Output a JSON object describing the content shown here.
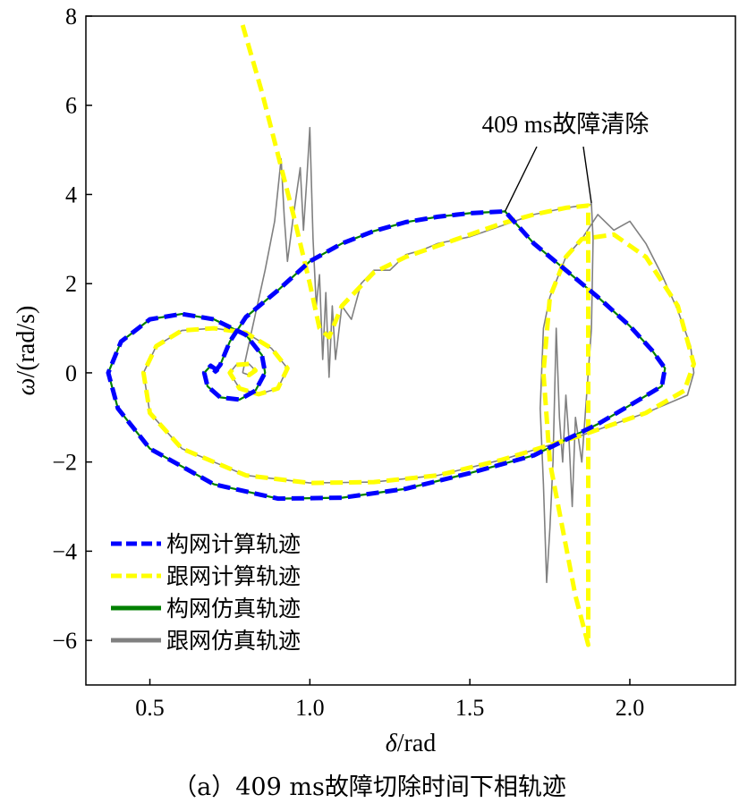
{
  "caption": "（a）409 ms故障切除时间下相轨迹",
  "chart_data": {
    "type": "line",
    "xlabel_symbol": "δ",
    "xlabel_unit": "/rad",
    "ylabel_symbol": "ω",
    "ylabel_unit": "/(rad/s)",
    "xlim": [
      0.3,
      2.33
    ],
    "ylim": [
      -7,
      8
    ],
    "xticks": [
      0.5,
      1.0,
      1.5,
      2.0
    ],
    "xtick_labels": [
      "0.5",
      "1.0",
      "1.5",
      "2.0"
    ],
    "yticks": [
      -6,
      -4,
      -2,
      0,
      2,
      4,
      6,
      8
    ],
    "ytick_labels": [
      "−6",
      "−4",
      "−2",
      "0",
      "2",
      "4",
      "6",
      "8"
    ],
    "grid": false,
    "legend_position": "bottom-left",
    "annotation": {
      "text": "409 ms故障清除",
      "points": [
        [
          1.61,
          3.62
        ],
        [
          1.88,
          3.8
        ]
      ]
    },
    "series": [
      {
        "name": "构网计算轨迹",
        "color": "#0000ff",
        "style": "dashed",
        "points": [
          [
            0.7,
            0.0
          ],
          [
            0.72,
            0.18
          ],
          [
            0.75,
            0.7
          ],
          [
            0.8,
            1.25
          ],
          [
            0.9,
            1.85
          ],
          [
            1.0,
            2.5
          ],
          [
            1.1,
            2.9
          ],
          [
            1.2,
            3.18
          ],
          [
            1.3,
            3.38
          ],
          [
            1.4,
            3.5
          ],
          [
            1.5,
            3.58
          ],
          [
            1.61,
            3.62
          ],
          [
            1.65,
            3.3
          ],
          [
            1.7,
            2.9
          ],
          [
            1.8,
            2.3
          ],
          [
            1.9,
            1.7
          ],
          [
            2.0,
            1.05
          ],
          [
            2.07,
            0.5
          ],
          [
            2.11,
            0.1
          ],
          [
            2.1,
            -0.3
          ],
          [
            2.03,
            -0.6
          ],
          [
            1.9,
            -1.15
          ],
          [
            1.7,
            -1.85
          ],
          [
            1.5,
            -2.25
          ],
          [
            1.3,
            -2.6
          ],
          [
            1.1,
            -2.8
          ],
          [
            0.9,
            -2.82
          ],
          [
            0.7,
            -2.5
          ],
          [
            0.5,
            -1.7
          ],
          [
            0.4,
            -0.8
          ],
          [
            0.37,
            0.0
          ],
          [
            0.41,
            0.7
          ],
          [
            0.5,
            1.2
          ],
          [
            0.6,
            1.32
          ],
          [
            0.7,
            1.2
          ],
          [
            0.8,
            0.85
          ],
          [
            0.85,
            0.4
          ],
          [
            0.86,
            0.0
          ],
          [
            0.83,
            -0.4
          ],
          [
            0.78,
            -0.6
          ],
          [
            0.72,
            -0.55
          ],
          [
            0.68,
            -0.3
          ],
          [
            0.67,
            0.0
          ],
          [
            0.69,
            0.16
          ],
          [
            0.71,
            0.06
          ],
          [
            0.7,
            0.0
          ]
        ]
      },
      {
        "name": "跟网计算轨迹",
        "color": "#ffff00",
        "style": "dashed",
        "points": [
          [
            0.79,
            7.8
          ],
          [
            0.85,
            6.3
          ],
          [
            0.9,
            4.9
          ],
          [
            0.95,
            3.5
          ],
          [
            1.0,
            2.0
          ],
          [
            1.03,
            1.0
          ],
          [
            1.06,
            0.8
          ],
          [
            1.1,
            1.5
          ],
          [
            1.2,
            2.25
          ],
          [
            1.3,
            2.6
          ],
          [
            1.4,
            2.85
          ],
          [
            1.5,
            3.1
          ],
          [
            1.6,
            3.35
          ],
          [
            1.7,
            3.55
          ],
          [
            1.8,
            3.7
          ],
          [
            1.87,
            3.75
          ],
          [
            1.87,
            1.5
          ],
          [
            1.87,
            -1.0
          ],
          [
            1.87,
            -3.5
          ],
          [
            1.87,
            -6.1
          ],
          [
            1.83,
            -5.0
          ],
          [
            1.79,
            -3.5
          ],
          [
            1.75,
            -2.0
          ],
          [
            1.73,
            0.0
          ],
          [
            1.75,
            1.7
          ],
          [
            1.8,
            2.6
          ],
          [
            1.85,
            3.0
          ],
          [
            1.95,
            3.1
          ],
          [
            2.05,
            2.6
          ],
          [
            2.15,
            1.5
          ],
          [
            2.2,
            0.2
          ],
          [
            2.17,
            -0.4
          ],
          [
            2.05,
            -0.9
          ],
          [
            1.85,
            -1.4
          ],
          [
            1.6,
            -1.95
          ],
          [
            1.4,
            -2.3
          ],
          [
            1.2,
            -2.45
          ],
          [
            1.0,
            -2.47
          ],
          [
            0.8,
            -2.3
          ],
          [
            0.6,
            -1.7
          ],
          [
            0.5,
            -0.9
          ],
          [
            0.48,
            0.0
          ],
          [
            0.52,
            0.6
          ],
          [
            0.6,
            0.95
          ],
          [
            0.7,
            1.0
          ],
          [
            0.8,
            0.9
          ],
          [
            0.88,
            0.55
          ],
          [
            0.93,
            0.1
          ],
          [
            0.9,
            -0.35
          ],
          [
            0.84,
            -0.48
          ],
          [
            0.78,
            -0.35
          ],
          [
            0.75,
            0.0
          ],
          [
            0.77,
            0.18
          ],
          [
            0.81,
            0.2
          ],
          [
            0.83,
            0.05
          ],
          [
            0.81,
            -0.05
          ],
          [
            0.79,
            0.0
          ]
        ]
      },
      {
        "name": "构网仿真轨迹",
        "color": "#008000",
        "style": "solid",
        "points": [
          [
            0.7,
            0.0
          ],
          [
            0.72,
            0.18
          ],
          [
            0.75,
            0.7
          ],
          [
            0.8,
            1.25
          ],
          [
            0.9,
            1.85
          ],
          [
            1.0,
            2.5
          ],
          [
            1.1,
            2.9
          ],
          [
            1.2,
            3.18
          ],
          [
            1.3,
            3.38
          ],
          [
            1.4,
            3.5
          ],
          [
            1.5,
            3.58
          ],
          [
            1.61,
            3.62
          ],
          [
            1.65,
            3.3
          ],
          [
            1.7,
            2.9
          ],
          [
            1.8,
            2.3
          ],
          [
            1.9,
            1.7
          ],
          [
            2.0,
            1.05
          ],
          [
            2.07,
            0.5
          ],
          [
            2.11,
            0.1
          ],
          [
            2.1,
            -0.3
          ],
          [
            2.03,
            -0.6
          ],
          [
            1.9,
            -1.15
          ],
          [
            1.7,
            -1.85
          ],
          [
            1.5,
            -2.25
          ],
          [
            1.3,
            -2.6
          ],
          [
            1.1,
            -2.8
          ],
          [
            0.9,
            -2.82
          ],
          [
            0.7,
            -2.5
          ],
          [
            0.5,
            -1.7
          ],
          [
            0.4,
            -0.8
          ],
          [
            0.37,
            0.0
          ],
          [
            0.41,
            0.7
          ],
          [
            0.5,
            1.2
          ],
          [
            0.6,
            1.32
          ],
          [
            0.7,
            1.2
          ],
          [
            0.8,
            0.85
          ],
          [
            0.85,
            0.4
          ],
          [
            0.86,
            0.0
          ],
          [
            0.83,
            -0.4
          ],
          [
            0.78,
            -0.6
          ],
          [
            0.72,
            -0.55
          ],
          [
            0.68,
            -0.3
          ],
          [
            0.67,
            0.0
          ],
          [
            0.69,
            0.16
          ],
          [
            0.71,
            0.06
          ],
          [
            0.7,
            0.0
          ]
        ]
      },
      {
        "name": "跟网仿真轨迹",
        "color": "#808080",
        "style": "solid",
        "points": [
          [
            0.79,
            0.0
          ],
          [
            0.82,
            1.0
          ],
          [
            0.86,
            2.3
          ],
          [
            0.89,
            3.4
          ],
          [
            0.91,
            4.8
          ],
          [
            0.92,
            3.5
          ],
          [
            0.93,
            2.5
          ],
          [
            0.95,
            3.6
          ],
          [
            0.97,
            4.6
          ],
          [
            0.98,
            3.2
          ],
          [
            0.99,
            4.3
          ],
          [
            1.0,
            5.5
          ],
          [
            1.01,
            3.0
          ],
          [
            1.02,
            1.5
          ],
          [
            1.03,
            2.2
          ],
          [
            1.04,
            0.3
          ],
          [
            1.05,
            1.8
          ],
          [
            1.06,
            -0.1
          ],
          [
            1.07,
            1.5
          ],
          [
            1.08,
            0.3
          ],
          [
            1.1,
            1.5
          ],
          [
            1.13,
            1.2
          ],
          [
            1.16,
            2.0
          ],
          [
            1.2,
            2.3
          ],
          [
            1.25,
            2.3
          ],
          [
            1.3,
            2.65
          ],
          [
            1.35,
            2.75
          ],
          [
            1.4,
            2.9
          ],
          [
            1.5,
            3.05
          ],
          [
            1.6,
            3.3
          ],
          [
            1.7,
            3.55
          ],
          [
            1.8,
            3.7
          ],
          [
            1.88,
            3.78
          ],
          [
            1.885,
            3.0
          ],
          [
            1.88,
            1.0
          ],
          [
            1.86,
            -1.0
          ],
          [
            1.85,
            -2.0
          ],
          [
            1.83,
            -1.0
          ],
          [
            1.82,
            -3.0
          ],
          [
            1.81,
            -1.5
          ],
          [
            1.8,
            -0.5
          ],
          [
            1.79,
            -2.0
          ],
          [
            1.78,
            -1.0
          ],
          [
            1.77,
            1.0
          ],
          [
            1.76,
            -2.0
          ],
          [
            1.75,
            -3.5
          ],
          [
            1.74,
            -4.7
          ],
          [
            1.73,
            -2.5
          ],
          [
            1.72,
            -0.8
          ],
          [
            1.73,
            1.0
          ],
          [
            1.75,
            1.7
          ],
          [
            1.8,
            2.6
          ],
          [
            1.85,
            3.0
          ],
          [
            1.9,
            3.55
          ],
          [
            1.95,
            3.2
          ],
          [
            2.0,
            3.4
          ],
          [
            2.05,
            2.9
          ],
          [
            2.1,
            2.2
          ],
          [
            2.15,
            1.4
          ],
          [
            2.19,
            0.6
          ],
          [
            2.2,
            0.0
          ],
          [
            2.18,
            -0.5
          ],
          [
            2.05,
            -0.9
          ],
          [
            1.85,
            -1.4
          ],
          [
            1.6,
            -1.95
          ],
          [
            1.4,
            -2.3
          ],
          [
            1.2,
            -2.45
          ],
          [
            1.0,
            -2.47
          ],
          [
            0.8,
            -2.3
          ],
          [
            0.6,
            -1.7
          ],
          [
            0.5,
            -0.9
          ],
          [
            0.48,
            0.0
          ],
          [
            0.52,
            0.6
          ],
          [
            0.6,
            0.95
          ],
          [
            0.7,
            1.0
          ],
          [
            0.8,
            0.9
          ],
          [
            0.88,
            0.55
          ],
          [
            0.93,
            0.1
          ],
          [
            0.9,
            -0.35
          ],
          [
            0.84,
            -0.48
          ],
          [
            0.78,
            -0.35
          ],
          [
            0.75,
            0.0
          ],
          [
            0.77,
            0.18
          ],
          [
            0.81,
            0.2
          ],
          [
            0.83,
            0.05
          ],
          [
            0.81,
            -0.05
          ],
          [
            0.79,
            0.0
          ]
        ]
      }
    ]
  }
}
